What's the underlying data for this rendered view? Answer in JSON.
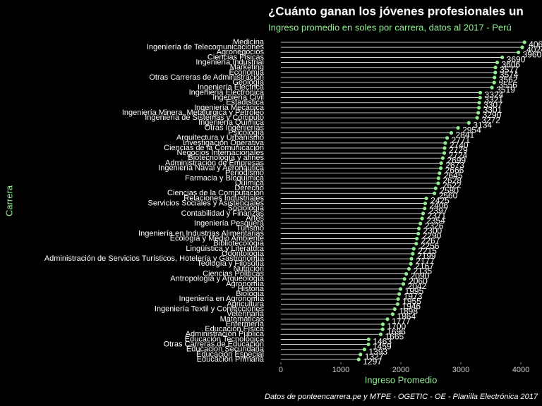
{
  "chart_data": {
    "type": "lollipop",
    "title": "¿Cuánto ganan los jóvenes profesionales un",
    "subtitle": "Ingreso promedio en soles por carrera, datos al 2017 - Perú",
    "x_label": "Ingreso Promedio",
    "y_label": "Carrera",
    "caption": "Datos de ponteencarrera.pe y MTPE - OGETIC - OE - Planilla Electrónica 2017",
    "categories": [
      "Medicina",
      "Ingeniería de Telecomunicaciones",
      "Agronegocios",
      "Ciencias Físicas",
      "Ingeniería Industrial",
      "Marketing",
      "Economía",
      "Otras Carreras de Administración",
      "Geología",
      "Ingeniería Eléctrica",
      "Ingeniería Electrónica",
      "Ingeniería Civil",
      "Estadística",
      "Ingeniería Mecánica",
      "Ingeniería Minera, Metalúrgica y Petróleo",
      "Ingeniería de Sistemas y Cómputo",
      "Ingeniería Química",
      "Otras Ingenierías",
      "Psicología",
      "Arquitectura y Urbanismo",
      "Investigación Operativa",
      "Ciencias de la Comunicación",
      "Negocios Internacionales",
      "Biotecnología y afines",
      "Administración de Empresas",
      "Ingeniería Naval y Aeronáutica",
      "Periodismo",
      "Farmacia y Bioquímica",
      "Química",
      "Derecho",
      "Ciencias de la Computación",
      "Relaciones Industriales",
      "Servicios Sociales y Asistenciales",
      "Sociología",
      "Contabilidad y Finanzas",
      "Artes",
      "Ingeniería Pesquera",
      "Turismo",
      "Ingeniería en Industrias Alimentarias",
      "Ecología y Medio Ambiente",
      "Bibliotecología",
      "Lingüística y Literatura",
      "Odontología",
      "Administración de Servicios Turísticos, Hotelería y Gastronomía",
      "Teología y Filosofía",
      "Nutrición",
      "Ciencias Políticas",
      "Antropología y Arqueología",
      "Agronomía",
      "Historia",
      "Biología",
      "Ingeniería en Agronomía",
      "Agricultura",
      "Ingeniería Textil y Confecciones",
      "Veterinaria",
      "Matemáticas",
      "Enfermería",
      "Educación Física",
      "Administración Pública",
      "Educación Tecnológica",
      "Otras Carreras de Educación",
      "Educación Secundaria",
      "Educación Especial",
      "Educación Primaria"
    ],
    "values": [
      4061,
      4024,
      3960,
      3690,
      3606,
      3577,
      3574,
      3562,
      3556,
      3519,
      3324,
      3321,
      3307,
      3301,
      3290,
      3272,
      3134,
      2954,
      2841,
      2771,
      2740,
      2729,
      2724,
      2699,
      2673,
      2666,
      2645,
      2628,
      2622,
      2580,
      2560,
      2425,
      2406,
      2397,
      2371,
      2354,
      2326,
      2300,
      2290,
      2267,
      2256,
      2215,
      2199,
      2177,
      2167,
      2135,
      2090,
      2060,
      2042,
      1995,
      1973,
      1955,
      1946,
      1898,
      1864,
      1777,
      1700,
      1696,
      1665,
      1463,
      1459,
      1393,
      1327,
      1297
    ],
    "color": "#90ee90",
    "xlim": [
      -235,
      4353
    ],
    "xticks": [
      0,
      1000,
      2000,
      3000,
      4000
    ]
  }
}
